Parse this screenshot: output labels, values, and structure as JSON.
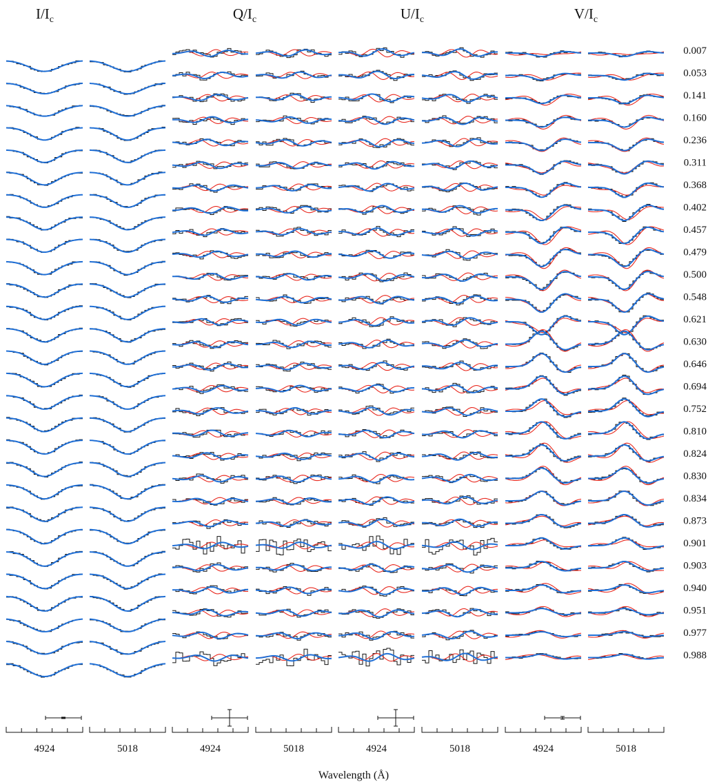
{
  "colors": {
    "observed": "#111111",
    "model_red": "#e8261c",
    "model_blue": "#1f6fd6"
  },
  "xlabel": "Wavelength (Å)",
  "panel_titles": [
    {
      "main": "I/I",
      "sub": "c"
    },
    {
      "main": "Q/I",
      "sub": "c"
    },
    {
      "main": "U/I",
      "sub": "c"
    },
    {
      "main": "V/I",
      "sub": "c"
    }
  ],
  "phases": [
    "0.007",
    "0.053",
    "0.141",
    "0.160",
    "0.236",
    "0.311",
    "0.368",
    "0.402",
    "0.457",
    "0.479",
    "0.500",
    "0.548",
    "0.621",
    "0.630",
    "0.646",
    "0.694",
    "0.752",
    "0.810",
    "0.824",
    "0.830",
    "0.834",
    "0.873",
    "0.901",
    "0.903",
    "0.940",
    "0.951",
    "0.977",
    "0.988"
  ],
  "chart_data": {
    "type": "line",
    "title": "",
    "xlabel": "Wavelength (Å)",
    "stokes_parameters": [
      "I/Ic",
      "Q/Ic",
      "U/Ic",
      "V/Ic"
    ],
    "lines": [
      "4924",
      "5018"
    ],
    "x_tick_labels": [
      "4924",
      "5018",
      "4924",
      "5018",
      "4924",
      "5018",
      "4924",
      "5018"
    ],
    "rotation_phases": [
      0.007,
      0.053,
      0.141,
      0.16,
      0.236,
      0.311,
      0.368,
      0.402,
      0.457,
      0.479,
      0.5,
      0.548,
      0.621,
      0.63,
      0.646,
      0.694,
      0.752,
      0.81,
      0.824,
      0.83,
      0.834,
      0.873,
      0.901,
      0.903,
      0.94,
      0.951,
      0.977,
      0.988
    ],
    "series": [
      {
        "name": "observed",
        "style": "histogram"
      },
      {
        "name": "model_red",
        "style": "line"
      },
      {
        "name": "model_blue",
        "style": "line"
      }
    ],
    "grid": false,
    "legend": "none"
  }
}
